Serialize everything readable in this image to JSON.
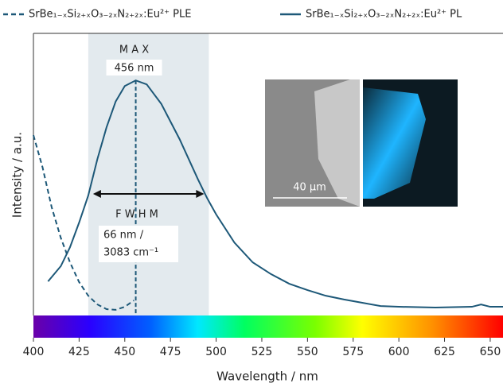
{
  "chart_data": {
    "type": "line",
    "xlabel": "Wavelength / nm",
    "ylabel": "Intensity / a.u.",
    "xlim": [
      400,
      657
    ],
    "ylim": [
      0,
      1.2
    ],
    "xticks": [
      400,
      425,
      450,
      475,
      500,
      525,
      550,
      575,
      600,
      625,
      650
    ],
    "series": [
      {
        "name": "SrBe₁₋ₓSi₂₊ₓO₃₋₂ₓN₂₊₂ₓ:Eu²⁺ PLE",
        "color": "#1d5878",
        "dashed": true,
        "x": [
          400,
          405,
          410,
          415,
          420,
          425,
          430,
          435,
          440,
          445,
          450,
          455
        ],
        "values": [
          0.767,
          0.63,
          0.46,
          0.33,
          0.226,
          0.142,
          0.084,
          0.047,
          0.027,
          0.024,
          0.037,
          0.064
        ]
      },
      {
        "name": "SrBe₁₋ₓSi₂₊ₓO₃₋₂ₓN₂₊₂ₓ:Eu²⁺ PL",
        "color": "#1d5878",
        "dashed": false,
        "x": [
          408,
          415,
          420,
          425,
          430,
          435,
          440,
          445,
          450,
          456,
          462,
          470,
          480,
          490,
          495,
          500,
          510,
          520,
          530,
          540,
          550,
          560,
          570,
          580,
          590,
          600,
          620,
          640,
          645,
          650,
          657
        ],
        "values": [
          0.145,
          0.21,
          0.29,
          0.395,
          0.51,
          0.665,
          0.8,
          0.91,
          0.976,
          1.0,
          0.983,
          0.9,
          0.75,
          0.58,
          0.5,
          0.43,
          0.31,
          0.226,
          0.176,
          0.135,
          0.108,
          0.084,
          0.068,
          0.054,
          0.04,
          0.037,
          0.034,
          0.037,
          0.047,
          0.037,
          0.037
        ]
      }
    ],
    "max_label": "M A X",
    "max_wavelength": {
      "value": 456,
      "label": "456 nm"
    },
    "fwhm_label": "F W H M",
    "fwhm_range": [
      430,
      496
    ],
    "fwhm_value_lines": [
      "66 nm /",
      "3083 cm⁻¹"
    ],
    "scale_bar_label": "40 µm"
  }
}
